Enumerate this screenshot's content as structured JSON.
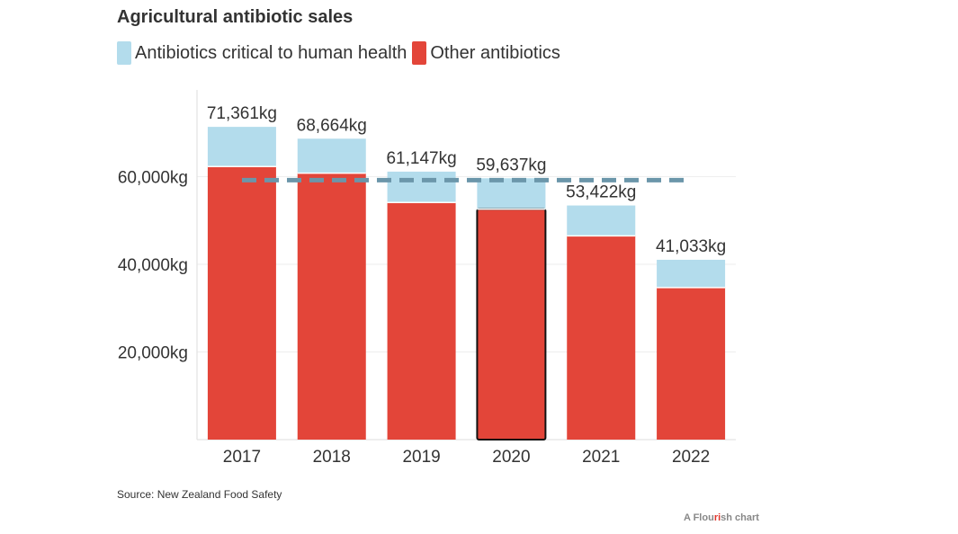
{
  "chart_data": {
    "type": "bar",
    "stacked": true,
    "title": "Agricultural antibiotic sales",
    "categories": [
      "2017",
      "2018",
      "2019",
      "2020",
      "2021",
      "2022"
    ],
    "series": [
      {
        "name": "Other antibiotics",
        "color": "#e34539",
        "values": [
          62300,
          60800,
          54100,
          52600,
          46500,
          34700
        ]
      },
      {
        "name": "Antibiotics critical to human health",
        "color": "#b3dcec",
        "values": [
          9061,
          7864,
          7047,
          7037,
          6922,
          6333
        ]
      }
    ],
    "totals": [
      71361,
      68664,
      61147,
      59637,
      53422,
      41033
    ],
    "total_labels": [
      "71,361kg",
      "68,664kg",
      "61,147kg",
      "59,637kg",
      "53,422kg",
      "41,033kg"
    ],
    "highlighted_category": "2020",
    "reference_line": {
      "value": 59200,
      "color": "#6b96aa",
      "style": "dashed"
    },
    "yticks": [
      20000,
      40000,
      60000
    ],
    "ytick_labels": [
      "20,000kg",
      "40,000kg",
      "60,000kg"
    ],
    "ylim": [
      0,
      75000
    ],
    "grid": true
  },
  "legend": [
    {
      "label": "Antibiotics critical to human health",
      "color": "#b3dcec"
    },
    {
      "label": "Other antibiotics",
      "color": "#e34539"
    }
  ],
  "source": "Source: New Zealand Food Safety",
  "brand": {
    "pre": "A Flou",
    "mid": "ri",
    "post": "sh chart"
  }
}
